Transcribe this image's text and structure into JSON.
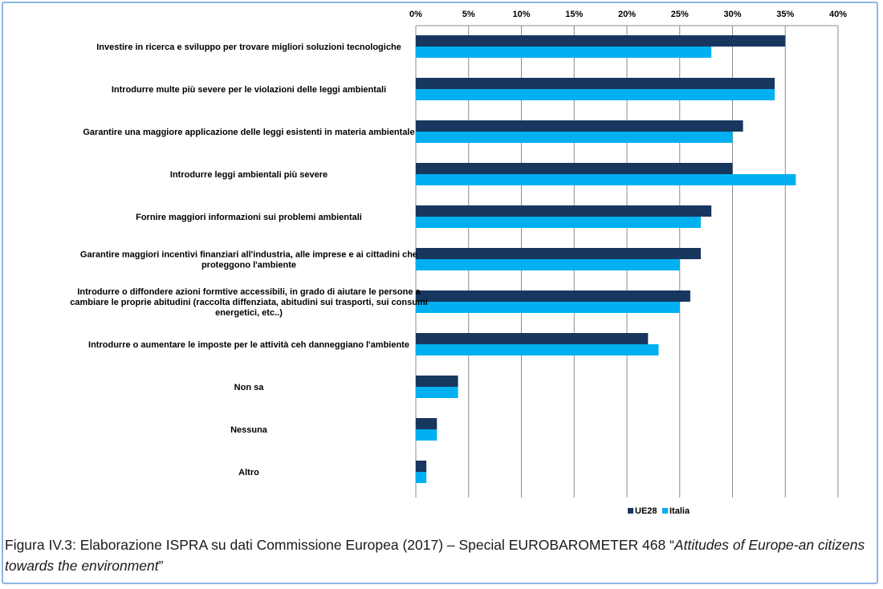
{
  "chart_data": {
    "type": "bar",
    "orientation": "horizontal",
    "categories": [
      [
        "Investire in ricerca e sviluppo per trovare migliori soluzioni tecnologiche"
      ],
      [
        "Introdurre multe più severe per le violazioni delle leggi ambientali"
      ],
      [
        "Garantire una maggiore applicazione delle leggi esistenti in materia ambientale"
      ],
      [
        "Introdurre leggi ambientali più severe"
      ],
      [
        "Fornire maggiori informazioni sui problemi ambientali"
      ],
      [
        "Garantire maggiori incentivi finanziari all'industria, alle imprese e ai cittadini che",
        "proteggono l'ambiente"
      ],
      [
        "Introdurre o diffondere azioni formtive accessibili, in grado di aiutare le persone a",
        "cambiare le proprie abitudini (raccolta diffenziata, abitudini sui trasporti, sui consumi",
        "energetici, etc..)"
      ],
      [
        "Introdurre o aumentare le imposte per le attività ceh danneggiano l'ambiente"
      ],
      [
        "Non sa"
      ],
      [
        "Nessuna"
      ],
      [
        "Altro"
      ]
    ],
    "series": [
      {
        "name": "UE28",
        "color": "#17375e",
        "values": [
          35,
          34,
          31,
          30,
          28,
          27,
          26,
          22,
          4,
          2,
          1
        ]
      },
      {
        "name": "Italia",
        "color": "#00b0f0",
        "values": [
          28,
          34,
          30,
          36,
          27,
          25,
          25,
          23,
          4,
          2,
          1
        ]
      }
    ],
    "xlim": [
      0,
      40
    ],
    "ticks": [
      0,
      5,
      10,
      15,
      20,
      25,
      30,
      35,
      40
    ],
    "tick_suffix": "%",
    "grid": true,
    "legend_position": "bottom"
  },
  "caption": {
    "prefix": "Figura IV.3: Elaborazione ISPRA su dati Commissione Europea (2017) – Special EUROBAROMETER 468 “",
    "italic": "Attitudes of Europe-an citizens towards the environment",
    "suffix": "”"
  }
}
